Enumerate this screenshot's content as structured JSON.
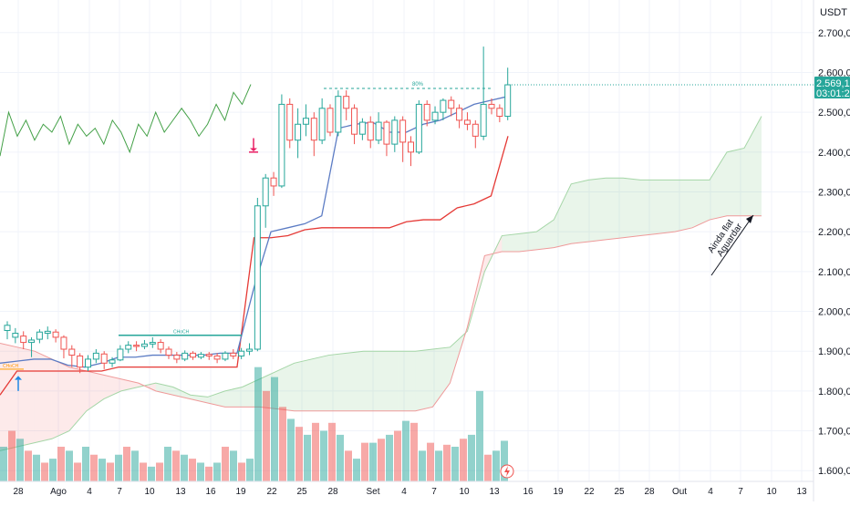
{
  "chart_data": {
    "type": "candlestick",
    "currency": "USDT",
    "y_ticks": [
      "2.700,00",
      "2.600,00",
      "2.500,00",
      "2.400,00",
      "2.300,00",
      "2.200,00",
      "2.100,00",
      "2.000,00",
      "1.900,00",
      "1.800,00",
      "1.700,00",
      "1.600,00"
    ],
    "y_values": [
      2700,
      2600,
      2500,
      2400,
      2300,
      2200,
      2100,
      2000,
      1900,
      1800,
      1700,
      1600
    ],
    "ylim": [
      1573,
      2782
    ],
    "x_ticks": [
      "28",
      "Ago",
      "4",
      "7",
      "10",
      "13",
      "16",
      "19",
      "22",
      "25",
      "28",
      "Set",
      "4",
      "7",
      "10",
      "13",
      "16",
      "19",
      "22",
      "25",
      "28",
      "Out",
      "4",
      "7",
      "10",
      "13"
    ],
    "last_price": "2.569,12",
    "last_price_value": 2569.12,
    "countdown": "03:01:24",
    "price_colors": {
      "up": "#26a69a",
      "down": "#ef5350"
    },
    "annotations": {
      "target_label": "80%",
      "bos_label": "CHoCH",
      "low_label": "CHoCH",
      "note_line1": "Ainda flat",
      "note_line2": "Aguardar"
    },
    "candles": [
      [
        1952,
        1965,
        1930,
        1975
      ],
      [
        1935,
        1945,
        1920,
        1958
      ],
      [
        1938,
        1922,
        1905,
        1950
      ],
      [
        1922,
        1928,
        1885,
        1935
      ],
      [
        1930,
        1948,
        1920,
        1955
      ],
      [
        1945,
        1950,
        1930,
        1962
      ],
      [
        1948,
        1935,
        1922,
        1955
      ],
      [
        1935,
        1905,
        1882,
        1940
      ],
      [
        1905,
        1890,
        1860,
        1915
      ],
      [
        1888,
        1860,
        1845,
        1895
      ],
      [
        1860,
        1880,
        1850,
        1890
      ],
      [
        1880,
        1895,
        1870,
        1905
      ],
      [
        1893,
        1870,
        1855,
        1900
      ],
      [
        1870,
        1878,
        1860,
        1885
      ],
      [
        1878,
        1905,
        1875,
        1915
      ],
      [
        1905,
        1915,
        1895,
        1925
      ],
      [
        1915,
        1912,
        1900,
        1925
      ],
      [
        1912,
        1918,
        1905,
        1928
      ],
      [
        1918,
        1922,
        1908,
        1935
      ],
      [
        1922,
        1905,
        1895,
        1930
      ],
      [
        1905,
        1890,
        1880,
        1912
      ],
      [
        1890,
        1880,
        1870,
        1898
      ],
      [
        1880,
        1895,
        1875,
        1902
      ],
      [
        1895,
        1885,
        1878,
        1900
      ],
      [
        1885,
        1892,
        1880,
        1898
      ],
      [
        1892,
        1888,
        1878,
        1898
      ],
      [
        1888,
        1880,
        1870,
        1895
      ],
      [
        1880,
        1895,
        1875,
        1900
      ],
      [
        1895,
        1888,
        1880,
        1905
      ],
      [
        1888,
        1900,
        1880,
        1908
      ],
      [
        1900,
        1905,
        1890,
        1920
      ],
      [
        1905,
        2265,
        1900,
        2285
      ],
      [
        2265,
        2335,
        2210,
        2345
      ],
      [
        2335,
        2315,
        2290,
        2350
      ],
      [
        2315,
        2520,
        2310,
        2545
      ],
      [
        2520,
        2430,
        2410,
        2535
      ],
      [
        2430,
        2470,
        2385,
        2510
      ],
      [
        2470,
        2485,
        2440,
        2520
      ],
      [
        2485,
        2430,
        2390,
        2500
      ],
      [
        2430,
        2510,
        2420,
        2535
      ],
      [
        2510,
        2450,
        2440,
        2520
      ],
      [
        2450,
        2540,
        2440,
        2555
      ],
      [
        2540,
        2510,
        2480,
        2555
      ],
      [
        2510,
        2445,
        2420,
        2520
      ],
      [
        2445,
        2475,
        2430,
        2485
      ],
      [
        2475,
        2430,
        2410,
        2490
      ],
      [
        2430,
        2475,
        2420,
        2500
      ],
      [
        2475,
        2420,
        2390,
        2480
      ],
      [
        2420,
        2480,
        2400,
        2490
      ],
      [
        2480,
        2425,
        2375,
        2490
      ],
      [
        2425,
        2400,
        2365,
        2440
      ],
      [
        2400,
        2520,
        2395,
        2530
      ],
      [
        2520,
        2480,
        2465,
        2530
      ],
      [
        2480,
        2500,
        2470,
        2515
      ],
      [
        2500,
        2530,
        2480,
        2535
      ],
      [
        2530,
        2510,
        2490,
        2540
      ],
      [
        2510,
        2480,
        2460,
        2520
      ],
      [
        2480,
        2470,
        2455,
        2500
      ],
      [
        2470,
        2440,
        2410,
        2480
      ],
      [
        2440,
        2520,
        2430,
        2665
      ],
      [
        2520,
        2510,
        2495,
        2535
      ],
      [
        2510,
        2490,
        2475,
        2520
      ],
      [
        2490,
        2569,
        2480,
        2612
      ]
    ],
    "volumes": [
      [
        1660,
        1
      ],
      [
        1700,
        0
      ],
      [
        1680,
        1
      ],
      [
        1650,
        0
      ],
      [
        1640,
        1
      ],
      [
        1620,
        0
      ],
      [
        1630,
        1
      ],
      [
        1660,
        0
      ],
      [
        1650,
        1
      ],
      [
        1620,
        0
      ],
      [
        1660,
        1
      ],
      [
        1640,
        0
      ],
      [
        1630,
        1
      ],
      [
        1620,
        0
      ],
      [
        1640,
        1
      ],
      [
        1660,
        0
      ],
      [
        1650,
        1
      ],
      [
        1620,
        0
      ],
      [
        1610,
        1
      ],
      [
        1620,
        0
      ],
      [
        1660,
        1
      ],
      [
        1650,
        0
      ],
      [
        1640,
        1
      ],
      [
        1630,
        0
      ],
      [
        1620,
        1
      ],
      [
        1610,
        0
      ],
      [
        1620,
        1
      ],
      [
        1660,
        0
      ],
      [
        1650,
        1
      ],
      [
        1620,
        0
      ],
      [
        1630,
        1
      ],
      [
        1860,
        1
      ],
      [
        1800,
        0
      ],
      [
        1835,
        1
      ],
      [
        1760,
        0
      ],
      [
        1730,
        1
      ],
      [
        1710,
        0
      ],
      [
        1690,
        1
      ],
      [
        1720,
        0
      ],
      [
        1700,
        1
      ],
      [
        1720,
        0
      ],
      [
        1690,
        1
      ],
      [
        1650,
        0
      ],
      [
        1630,
        1
      ],
      [
        1670,
        0
      ],
      [
        1670,
        1
      ],
      [
        1680,
        0
      ],
      [
        1690,
        1
      ],
      [
        1700,
        0
      ],
      [
        1725,
        1
      ],
      [
        1720,
        0
      ],
      [
        1650,
        1
      ],
      [
        1670,
        0
      ],
      [
        1650,
        1
      ],
      [
        1665,
        0
      ],
      [
        1660,
        1
      ],
      [
        1680,
        0
      ],
      [
        1690,
        1
      ],
      [
        1800,
        1
      ],
      [
        1640,
        0
      ],
      [
        1650,
        1
      ],
      [
        1675,
        1
      ]
    ],
    "green_line": [
      2390,
      2500,
      2440,
      2480,
      2430,
      2470,
      2450,
      2490,
      2420,
      2470,
      2440,
      2460,
      2420,
      2480,
      2450,
      2400,
      2470,
      2440,
      2500,
      2450,
      2480,
      2510,
      2480,
      2440,
      2470,
      2520,
      2480,
      2550,
      2520,
      2570
    ],
    "cloud_upper": [
      1650,
      1660,
      1670,
      1680,
      1700,
      1750,
      1780,
      1800,
      1810,
      1820,
      1810,
      1790,
      1785,
      1800,
      1810,
      1830,
      1850,
      1870,
      1880,
      1890,
      1895,
      1900,
      1900,
      1900,
      1900,
      1905,
      1910,
      1950,
      2100,
      2190,
      2195,
      2200,
      2230,
      2320,
      2330,
      2335,
      2335,
      2330,
      2330,
      2330,
      2330,
      2330,
      2400,
      2410,
      2490
    ],
    "cloud_lower": [
      1920,
      1910,
      1900,
      1880,
      1860,
      1850,
      1840,
      1830,
      1820,
      1800,
      1790,
      1780,
      1770,
      1760,
      1760,
      1760,
      1755,
      1750,
      1750,
      1750,
      1750,
      1750,
      1750,
      1750,
      1750,
      1760,
      1820,
      1960,
      2140,
      2150,
      2150,
      2155,
      2160,
      2170,
      2175,
      2180,
      2185,
      2190,
      2195,
      2200,
      2210,
      2230,
      2240,
      2240,
      2240
    ],
    "red_line": [
      1790,
      1850,
      1850,
      1850,
      1850,
      1850,
      1850,
      1860,
      1860,
      1860,
      1860,
      1860,
      1860,
      1860,
      1860,
      2185,
      2185,
      2190,
      2205,
      2210,
      2210,
      2210,
      2210,
      2210,
      2225,
      2230,
      2230,
      2260,
      2270,
      2290,
      2440
    ],
    "blue_line": [
      1870,
      1875,
      1880,
      1880,
      1865,
      1860,
      1870,
      1885,
      1885,
      1890,
      1890,
      1890,
      1890,
      1895,
      1895,
      2060,
      2200,
      2210,
      2220,
      2240,
      2460,
      2470,
      2475,
      2450,
      2450,
      2470,
      2480,
      2500,
      2520,
      2530,
      2540
    ],
    "resistance_level": 2560,
    "bos_level": 1940
  }
}
